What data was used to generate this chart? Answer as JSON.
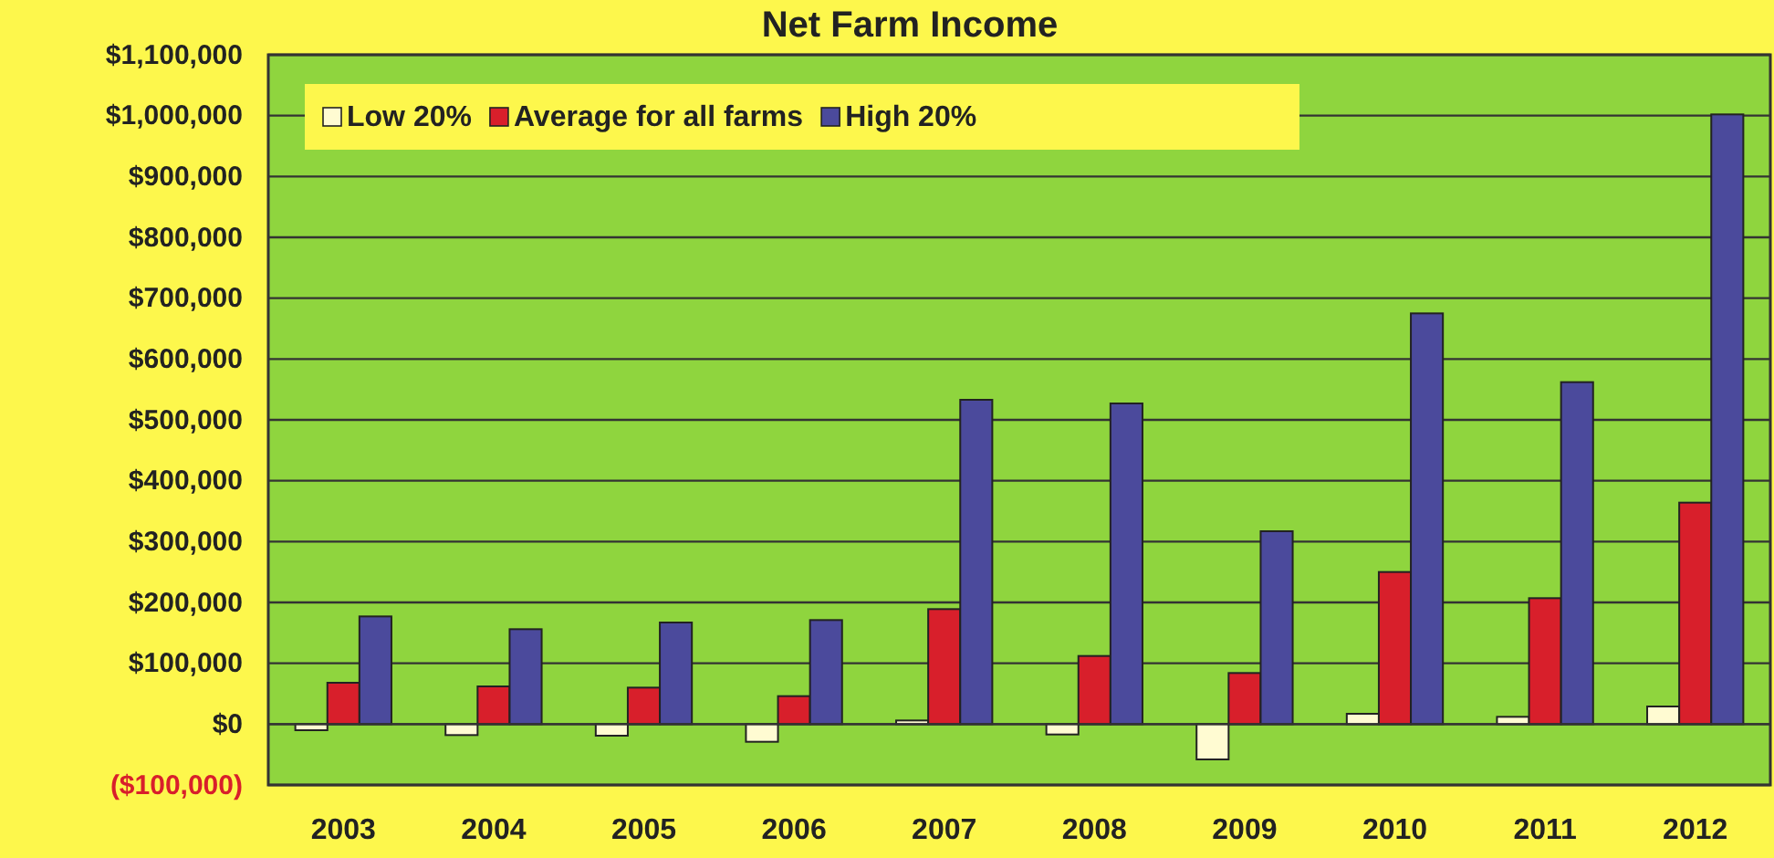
{
  "chart_data": {
    "type": "bar",
    "title": "Net Farm Income",
    "categories": [
      "2003",
      "2004",
      "2005",
      "2006",
      "2007",
      "2008",
      "2009",
      "2010",
      "2011",
      "2012"
    ],
    "series": [
      {
        "name": "Low 20%",
        "color": "#fffbd2",
        "values": [
          -10000,
          -18000,
          -19000,
          -29000,
          6000,
          -17000,
          -58000,
          17000,
          12000,
          29000
        ]
      },
      {
        "name": "Average for all farms",
        "color": "#d81f2b",
        "values": [
          68000,
          62000,
          60000,
          46000,
          189000,
          112000,
          84000,
          250000,
          207000,
          364000
        ]
      },
      {
        "name": "High 20%",
        "color": "#4b4a9c",
        "values": [
          177000,
          156000,
          167000,
          171000,
          533000,
          527000,
          317000,
          675000,
          562000,
          1002000
        ]
      }
    ],
    "ylim": [
      -100000,
      1100000
    ],
    "yticks": [
      {
        "value": -100000,
        "label": "($100,000)"
      },
      {
        "value": 0,
        "label": "$0"
      },
      {
        "value": 100000,
        "label": "$100,000"
      },
      {
        "value": 200000,
        "label": "$200,000"
      },
      {
        "value": 300000,
        "label": "$300,000"
      },
      {
        "value": 400000,
        "label": "$400,000"
      },
      {
        "value": 500000,
        "label": "$500,000"
      },
      {
        "value": 600000,
        "label": "$600,000"
      },
      {
        "value": 700000,
        "label": "$700,000"
      },
      {
        "value": 800000,
        "label": "$800,000"
      },
      {
        "value": 900000,
        "label": "$900,000"
      },
      {
        "value": 1000000,
        "label": "$1,000,000"
      },
      {
        "value": 1100000,
        "label": "$1,100,000"
      }
    ],
    "grid": "y",
    "legend": "top left"
  }
}
